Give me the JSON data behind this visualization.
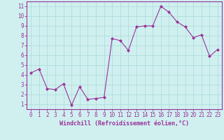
{
  "x": [
    0,
    1,
    2,
    3,
    4,
    5,
    6,
    7,
    8,
    9,
    10,
    11,
    12,
    13,
    14,
    15,
    16,
    17,
    18,
    19,
    20,
    21,
    22,
    23
  ],
  "y": [
    4.2,
    4.6,
    2.6,
    2.5,
    3.1,
    0.9,
    2.8,
    1.5,
    1.6,
    1.7,
    7.7,
    7.5,
    6.5,
    8.9,
    9.0,
    9.0,
    11.0,
    10.4,
    9.4,
    8.9,
    7.8,
    8.1,
    5.9,
    6.6
  ],
  "line_color": "#993399",
  "marker": "D",
  "marker_size": 2.0,
  "bg_color": "#d0f0f0",
  "grid_color": "#b0dcdc",
  "xlabel": "Windchill (Refroidissement éolien,°C)",
  "xlabel_color": "#993399",
  "tick_color": "#993399",
  "ylim": [
    0.5,
    11.5
  ],
  "xlim": [
    -0.5,
    23.5
  ],
  "yticks": [
    1,
    2,
    3,
    4,
    5,
    6,
    7,
    8,
    9,
    10,
    11
  ],
  "xticks": [
    0,
    1,
    2,
    3,
    4,
    5,
    6,
    7,
    8,
    9,
    10,
    11,
    12,
    13,
    14,
    15,
    16,
    17,
    18,
    19,
    20,
    21,
    22,
    23
  ],
  "spine_color": "#993399",
  "tick_fontsize": 5.5,
  "xlabel_fontsize": 6.0,
  "line_width": 0.8
}
